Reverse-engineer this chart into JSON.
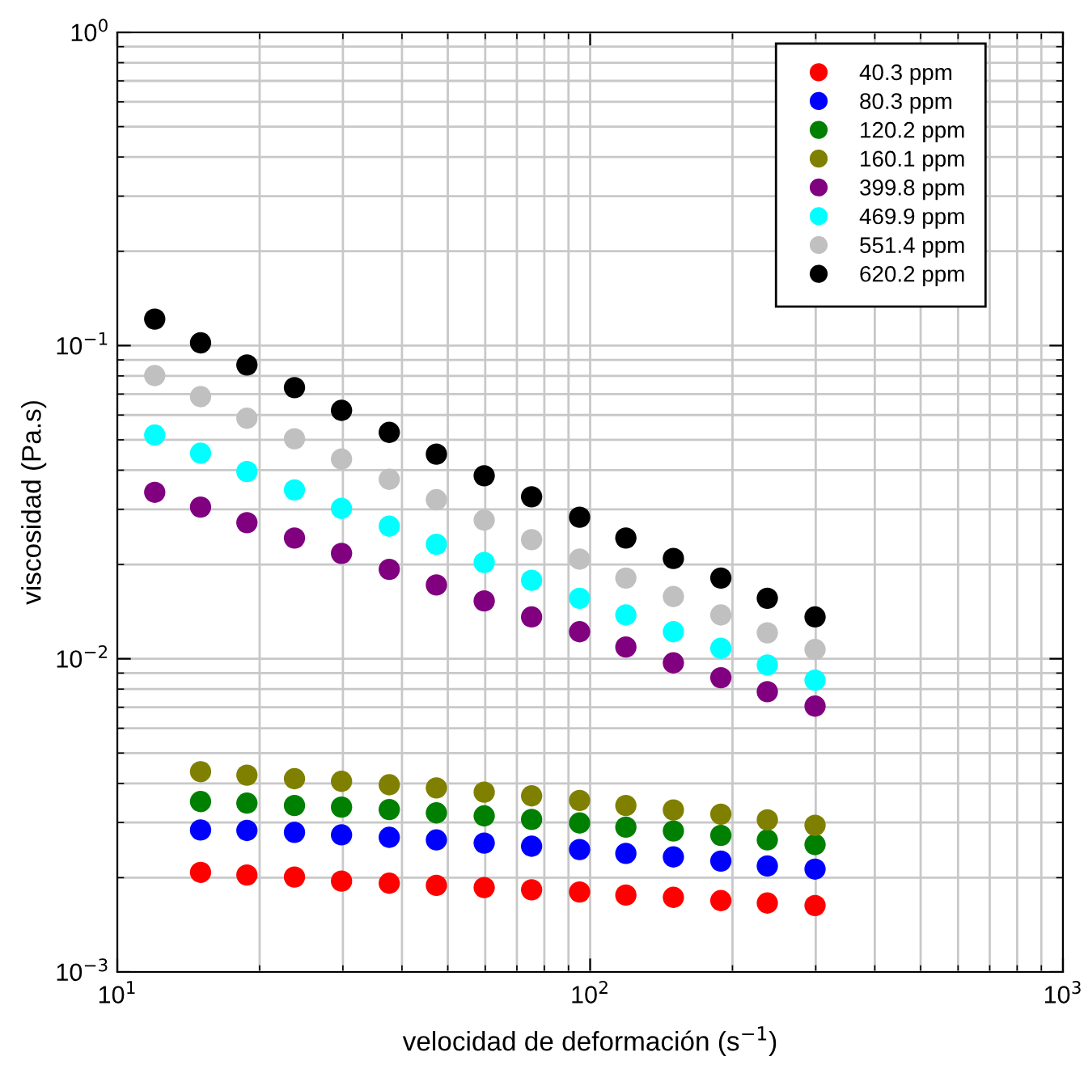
{
  "chart_data": {
    "type": "scatter",
    "xlabel": "velocidad de deformación (s$^{−1}$)",
    "ylabel": "viscosidad (Pa.s)",
    "log": "xy",
    "grid": true,
    "legend": "top right",
    "marker": "circle",
    "xlim": [
      10,
      1000
    ],
    "ylim": [
      0.001,
      1
    ],
    "xticks": [
      {
        "value": 10,
        "label": "10$^{1}$"
      },
      {
        "value": 100,
        "label": "10$^{2}$"
      },
      {
        "value": 1000,
        "label": "10$^{3}$"
      }
    ],
    "yticks": [
      {
        "value": 0.001,
        "label": "10$^{−3}$"
      },
      {
        "value": 0.01,
        "label": "10$^{−2}$"
      },
      {
        "value": 0.1,
        "label": "10$^{−1}$"
      },
      {
        "value": 1,
        "label": "10$^{0}$"
      }
    ],
    "series": [
      {
        "name": "40.3 ppm",
        "color": "#ff0000",
        "x": [
          15,
          18.8,
          23.7,
          29.8,
          37.6,
          47.3,
          59.7,
          75.2,
          95,
          119,
          150,
          189,
          237,
          299
        ],
        "values": [
          0.00208,
          0.00204,
          0.00201,
          0.00195,
          0.00192,
          0.00189,
          0.00186,
          0.00183,
          0.0018,
          0.00176,
          0.00173,
          0.00169,
          0.00166,
          0.00163
        ]
      },
      {
        "name": "80.3 ppm",
        "color": "#0000ff",
        "x": [
          15,
          18.8,
          23.7,
          29.8,
          37.6,
          47.3,
          59.7,
          75.2,
          95,
          119,
          150,
          189,
          237,
          299
        ],
        "values": [
          0.00284,
          0.00283,
          0.00279,
          0.00274,
          0.00269,
          0.00264,
          0.00258,
          0.00252,
          0.00246,
          0.00239,
          0.00233,
          0.00226,
          0.00218,
          0.00213
        ]
      },
      {
        "name": "120.2 ppm",
        "color": "#008000",
        "x": [
          15,
          18.8,
          23.7,
          29.8,
          37.6,
          47.3,
          59.7,
          75.2,
          95,
          119,
          150,
          189,
          237,
          299
        ],
        "values": [
          0.0035,
          0.00346,
          0.0034,
          0.00336,
          0.0033,
          0.00322,
          0.00315,
          0.00307,
          0.00299,
          0.0029,
          0.00282,
          0.00273,
          0.00264,
          0.00255
        ]
      },
      {
        "name": "160.1 ppm",
        "color": "#808000",
        "x": [
          15,
          18.8,
          23.7,
          29.8,
          37.6,
          47.3,
          59.7,
          75.2,
          95,
          119,
          150,
          189,
          237,
          299
        ],
        "values": [
          0.00436,
          0.00425,
          0.00414,
          0.00406,
          0.00396,
          0.00387,
          0.00375,
          0.00365,
          0.00353,
          0.0034,
          0.00329,
          0.00319,
          0.00306,
          0.00294
        ]
      },
      {
        "name": "399.8 ppm",
        "color": "#800080",
        "x": [
          12,
          15,
          18.8,
          23.7,
          29.8,
          37.6,
          47.3,
          59.7,
          75.2,
          95,
          119,
          150,
          189,
          237,
          299
        ],
        "values": [
          0.034,
          0.0305,
          0.0272,
          0.0243,
          0.0217,
          0.0193,
          0.0172,
          0.0153,
          0.0136,
          0.0122,
          0.0109,
          0.0097,
          0.0087,
          0.00785,
          0.00706
        ]
      },
      {
        "name": "469.9 ppm",
        "color": "#00ffff",
        "x": [
          12,
          15,
          18.8,
          23.7,
          29.8,
          37.6,
          47.3,
          59.7,
          75.2,
          95,
          119,
          150,
          189,
          237,
          299
        ],
        "values": [
          0.0518,
          0.0453,
          0.0396,
          0.0346,
          0.0302,
          0.0265,
          0.0232,
          0.0203,
          0.0178,
          0.0156,
          0.0138,
          0.0122,
          0.0108,
          0.00955,
          0.00854
        ]
      },
      {
        "name": "551.4 ppm",
        "color": "#c0c0c0",
        "x": [
          12,
          15,
          18.8,
          23.7,
          29.8,
          37.6,
          47.3,
          59.7,
          75.2,
          95,
          119,
          150,
          189,
          237,
          299
        ],
        "values": [
          0.0802,
          0.0687,
          0.0586,
          0.0504,
          0.0434,
          0.0374,
          0.0322,
          0.0277,
          0.024,
          0.0208,
          0.0181,
          0.0158,
          0.0138,
          0.0121,
          0.0107
        ]
      },
      {
        "name": "620.2 ppm",
        "color": "#000000",
        "x": [
          12,
          15,
          18.8,
          23.7,
          29.8,
          37.6,
          47.3,
          59.7,
          75.2,
          95,
          119,
          150,
          189,
          237,
          299
        ],
        "values": [
          0.1215,
          0.102,
          0.0867,
          0.0734,
          0.0621,
          0.0528,
          0.045,
          0.0384,
          0.0329,
          0.0283,
          0.0243,
          0.0209,
          0.0181,
          0.0156,
          0.0136
        ]
      }
    ]
  }
}
